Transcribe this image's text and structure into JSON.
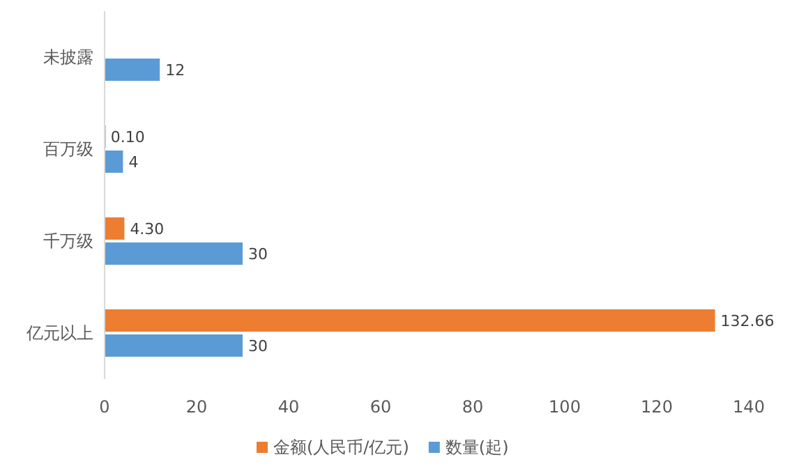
{
  "chart_data": {
    "type": "bar",
    "orientation": "horizontal",
    "categories": [
      "未披露",
      "百万级",
      "千万级",
      "亿元以上"
    ],
    "series": [
      {
        "name": "金额(人民币/亿元)",
        "color": "#ed7d31",
        "values": [
          null,
          0.1,
          4.3,
          132.66
        ],
        "value_labels": [
          null,
          "0.10",
          "4.30",
          "132.66"
        ]
      },
      {
        "name": "数量(起)",
        "color": "#5b9bd5",
        "values": [
          12,
          4,
          30,
          30
        ],
        "value_labels": [
          "12",
          "4",
          "30",
          "30"
        ]
      }
    ],
    "xlim": [
      0,
      140
    ],
    "xticks": [
      0,
      20,
      40,
      60,
      80,
      100,
      120,
      140
    ],
    "grid": false,
    "legend": "bottom"
  }
}
